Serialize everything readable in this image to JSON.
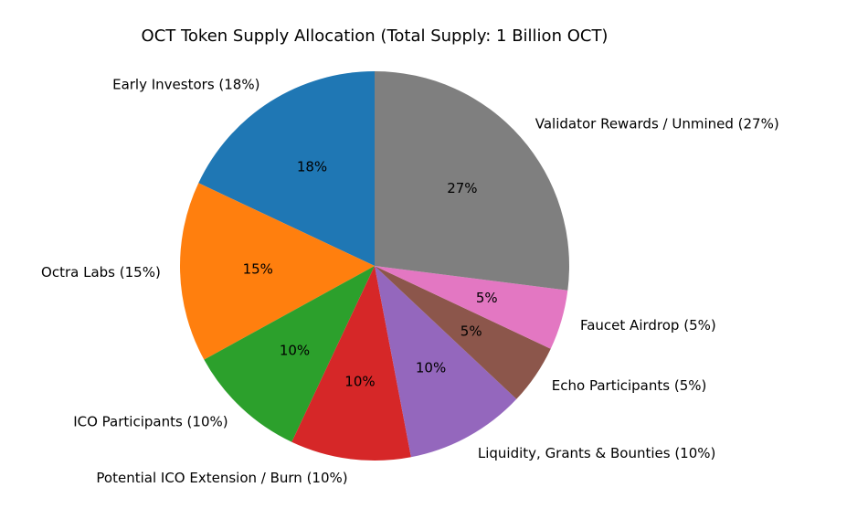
{
  "chart_data": {
    "type": "pie",
    "title": "OCT Token Supply Allocation (Total Supply: 1 Billion OCT)",
    "categories": [
      "Early Investors (18%)",
      "Octra Labs (15%)",
      "ICO Participants (10%)",
      "Potential ICO Extension / Burn (10%)",
      "Liquidity, Grants & Bounties (10%)",
      "Echo Participants (5%)",
      "Faucet Airdrop (5%)",
      "Validator Rewards / Unmined (27%)"
    ],
    "values": [
      18,
      15,
      10,
      10,
      10,
      5,
      5,
      27
    ],
    "value_labels": [
      "18%",
      "15%",
      "10%",
      "10%",
      "10%",
      "5%",
      "5%",
      "27%"
    ],
    "colors": [
      "#1f77b4",
      "#ff7f0e",
      "#2ca02c",
      "#d62728",
      "#9467bd",
      "#8c564b",
      "#e377c2",
      "#7f7f7f"
    ]
  }
}
